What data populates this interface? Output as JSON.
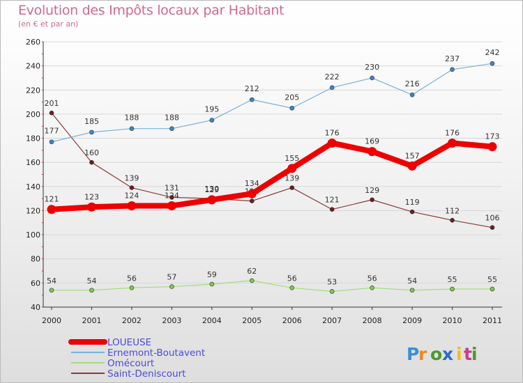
{
  "title": "Evolution des Impôts locaux par Habitant",
  "subtitle": "(en € et par an)",
  "logo": "Proxiti",
  "chart_data": {
    "type": "line",
    "x": [
      "2000",
      "2001",
      "2002",
      "2003",
      "2004",
      "2005",
      "2006",
      "2007",
      "2008",
      "2009",
      "2010",
      "2011"
    ],
    "ylim": [
      40,
      260
    ],
    "yticks": [
      40,
      60,
      80,
      100,
      120,
      140,
      160,
      180,
      200,
      220,
      240,
      260
    ],
    "grid": "horizontal",
    "legend_position": "bottom-left",
    "series": [
      {
        "name": "LOUEUSE",
        "color": "#ee0000",
        "values": [
          121,
          123,
          124,
          124,
          129,
          134,
          155,
          176,
          169,
          157,
          176,
          173
        ]
      },
      {
        "name": "Ernemont-Boutavent",
        "color": "#6ea6d6",
        "values": [
          177,
          185,
          188,
          188,
          195,
          212,
          205,
          222,
          230,
          216,
          237,
          242
        ]
      },
      {
        "name": "Omécourt",
        "color": "#9ad86a",
        "values": [
          54,
          54,
          56,
          57,
          59,
          62,
          56,
          53,
          56,
          54,
          55,
          55
        ]
      },
      {
        "name": "Saint-Deniscourt",
        "color": "#7a2a2a",
        "values": [
          201,
          160,
          139,
          131,
          130,
          128,
          139,
          121,
          129,
          119,
          112,
          106
        ]
      }
    ]
  }
}
